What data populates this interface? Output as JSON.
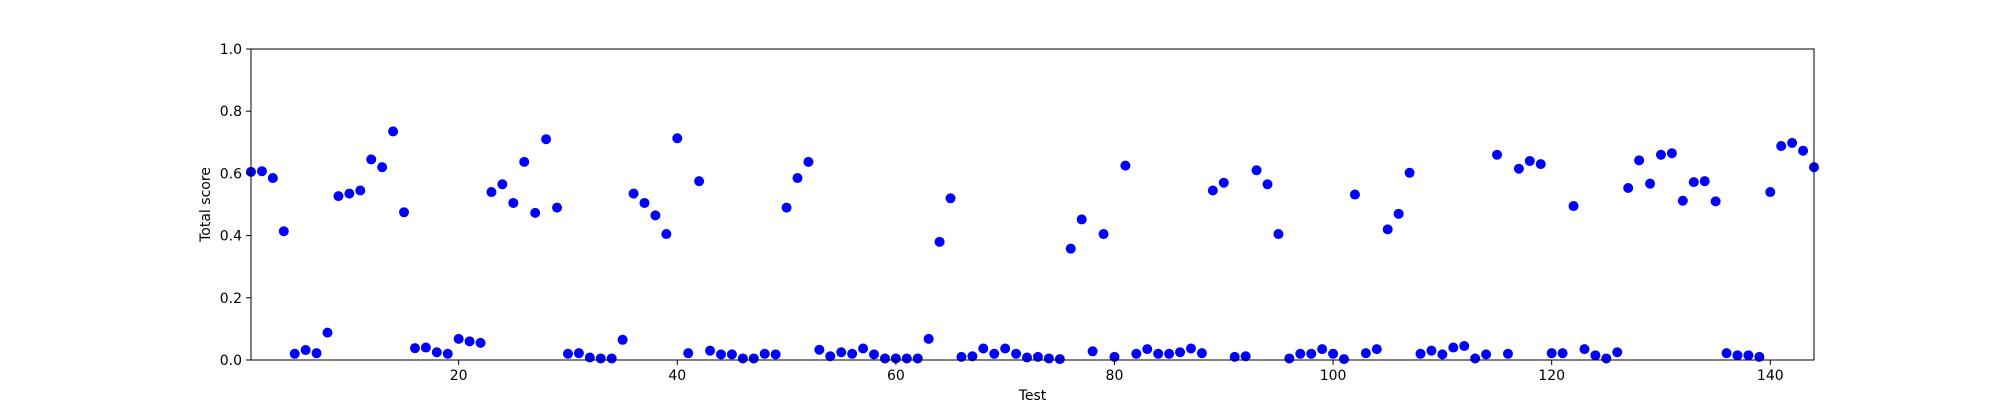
{
  "chart_data": {
    "type": "scatter",
    "xlabel": "Test",
    "ylabel": "Total score",
    "xlim": [
      1,
      144
    ],
    "ylim": [
      0,
      1.0
    ],
    "xticks": [
      20,
      40,
      60,
      80,
      100,
      120,
      140
    ],
    "xtick_labels": [
      "20",
      "40",
      "60",
      "80",
      "100",
      "120",
      "140"
    ],
    "yticks": [
      0.0,
      0.2,
      0.4,
      0.6,
      0.8,
      1.0
    ],
    "ytick_labels": [
      "0.0",
      "0.2",
      "0.4",
      "0.6",
      "0.8",
      "1.0"
    ],
    "grid": false,
    "marker_color": "#0000ff",
    "series": [
      {
        "x": [
          1,
          2,
          3,
          4,
          5,
          6,
          7,
          8,
          9,
          10,
          11,
          12,
          13,
          14,
          15,
          16,
          17,
          18,
          19,
          20,
          21,
          22,
          23,
          24,
          25,
          26,
          27,
          28,
          29,
          30,
          31,
          32,
          33,
          34,
          35,
          36,
          37,
          38,
          39,
          40,
          41,
          42,
          43,
          44,
          45,
          46,
          47,
          48,
          49,
          50,
          51,
          52,
          53,
          54,
          55,
          56,
          57,
          58,
          59,
          60,
          61,
          62,
          63,
          64,
          65,
          66,
          67,
          68,
          69,
          70,
          71,
          72,
          73,
          74,
          75,
          76,
          77,
          78,
          79,
          80,
          81,
          82,
          83,
          84,
          85,
          86,
          87,
          88,
          89,
          90,
          91,
          92,
          93,
          94,
          95,
          96,
          97,
          98,
          99,
          100,
          101,
          102,
          103,
          104,
          105,
          106,
          107,
          108,
          109,
          110,
          111,
          112,
          113,
          114,
          115,
          116,
          117,
          118,
          119,
          120,
          121,
          122,
          123,
          124,
          125,
          126,
          127,
          128,
          129,
          130,
          131,
          132,
          133,
          134,
          135,
          136,
          137,
          138,
          139,
          140,
          141,
          142,
          143,
          144
        ],
        "y": [
          0.605,
          0.607,
          0.585,
          0.414,
          0.02,
          0.032,
          0.022,
          0.088,
          0.527,
          0.535,
          0.545,
          0.645,
          0.62,
          0.735,
          0.475,
          0.038,
          0.04,
          0.025,
          0.02,
          0.068,
          0.06,
          0.055,
          0.54,
          0.565,
          0.505,
          0.637,
          0.473,
          0.71,
          0.49,
          0.02,
          0.022,
          0.008,
          0.005,
          0.005,
          0.065,
          0.535,
          0.505,
          0.465,
          0.405,
          0.713,
          0.022,
          0.575,
          0.03,
          0.018,
          0.018,
          0.005,
          0.005,
          0.02,
          0.018,
          0.49,
          0.585,
          0.637,
          0.033,
          0.012,
          0.025,
          0.02,
          0.037,
          0.018,
          0.005,
          0.005,
          0.005,
          0.005,
          0.068,
          0.38,
          0.52,
          0.01,
          0.012,
          0.037,
          0.02,
          0.037,
          0.02,
          0.008,
          0.01,
          0.005,
          0.003,
          0.358,
          0.452,
          0.028,
          0.405,
          0.01,
          0.625,
          0.02,
          0.035,
          0.02,
          0.02,
          0.025,
          0.037,
          0.022,
          0.545,
          0.57,
          0.01,
          0.012,
          0.61,
          0.565,
          0.405,
          0.005,
          0.02,
          0.02,
          0.035,
          0.02,
          0.003,
          0.532,
          0.022,
          0.035,
          0.42,
          0.47,
          0.602,
          0.02,
          0.03,
          0.018,
          0.04,
          0.045,
          0.005,
          0.018,
          0.66,
          0.02,
          0.615,
          0.64,
          0.63,
          0.022,
          0.022,
          0.495,
          0.035,
          0.015,
          0.005,
          0.025,
          0.553,
          0.642,
          0.567,
          0.66,
          0.665,
          0.512,
          0.572,
          0.575,
          0.51,
          0.022,
          0.015,
          0.015,
          0.01,
          0.54,
          0.688,
          0.698,
          0.673,
          0.62
        ]
      }
    ]
  }
}
